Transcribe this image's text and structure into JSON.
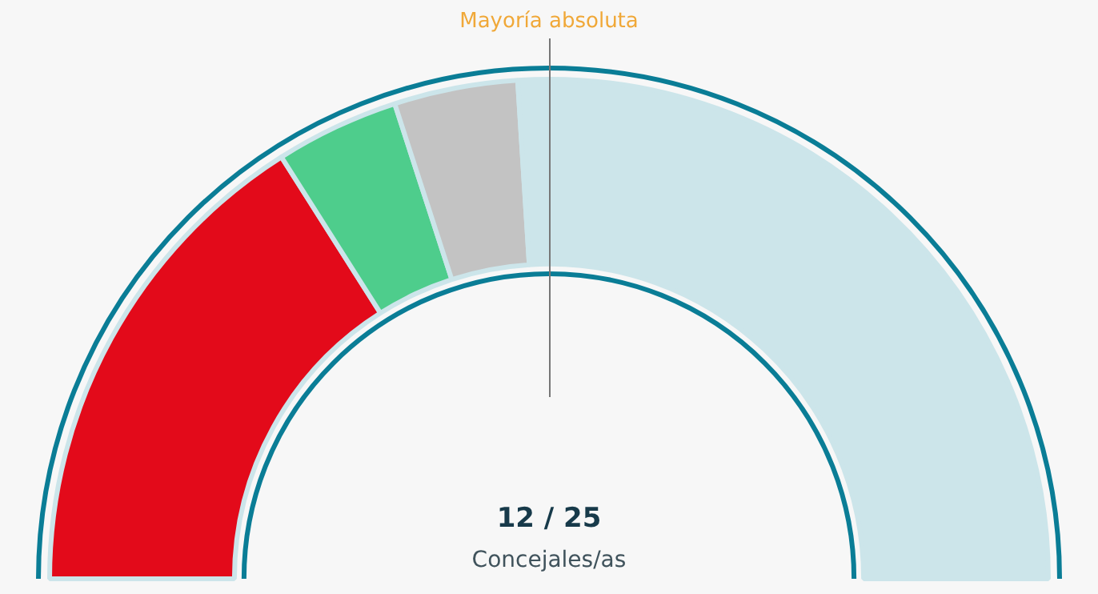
{
  "chart_data": {
    "type": "donut",
    "categories": [
      null,
      null,
      null,
      null
    ],
    "values": [
      32,
      8,
      8,
      52
    ],
    "colors": [
      "#e30a1a",
      "#4ecd8c",
      "#c3c3c3",
      "#cce5ea"
    ],
    "annotations": [
      "Mayoría absoluta",
      "12 / 25",
      "Concejales/as"
    ]
  }
}
